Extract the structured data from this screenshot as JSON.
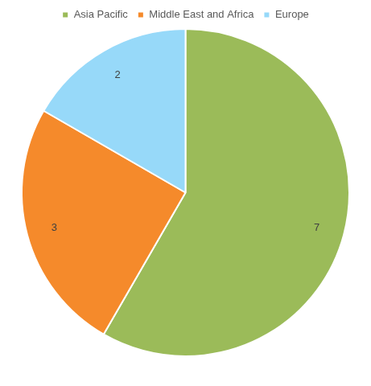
{
  "chart_data": {
    "type": "pie",
    "categories": [
      "Asia Pacific",
      "Middle East and Africa",
      "Europe"
    ],
    "values": [
      7,
      3,
      2
    ],
    "colors": [
      "#9bbb59",
      "#f58a2b",
      "#97d9f9"
    ],
    "legend": "top",
    "data_labels": true
  }
}
